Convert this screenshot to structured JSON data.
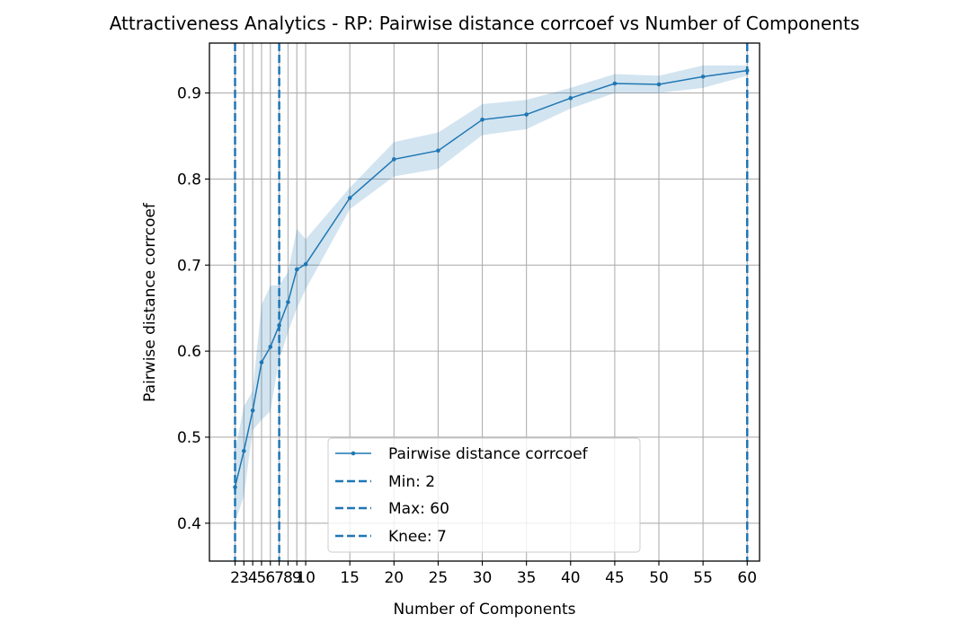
{
  "chart_data": {
    "type": "line",
    "title": "Attractiveness Analytics - RP: Pairwise distance corrcoef vs Number of Components",
    "xlabel": "Number of Components",
    "ylabel": "Pairwise distance corrcoef",
    "xlim": [
      -0.9,
      61.4
    ],
    "ylim": [
      0.356,
      0.958
    ],
    "x_ticks": [
      2,
      3,
      4,
      5,
      6,
      7,
      8,
      9,
      10,
      15,
      20,
      25,
      30,
      35,
      40,
      45,
      50,
      55,
      60
    ],
    "y_ticks": [
      0.4,
      0.5,
      0.6,
      0.7,
      0.8,
      0.9
    ],
    "y_tick_labels": [
      "0.4",
      "0.5",
      "0.6",
      "0.7",
      "0.8",
      "0.9"
    ],
    "grid": true,
    "legend_position": "lower-center",
    "series": [
      {
        "name": "Pairwise distance corrcoef",
        "color": "#1f77b4",
        "x": [
          2,
          3,
          4,
          5,
          6,
          7,
          8,
          9,
          10,
          15,
          20,
          25,
          30,
          35,
          40,
          45,
          50,
          55,
          60
        ],
        "y": [
          0.442,
          0.484,
          0.531,
          0.587,
          0.605,
          0.63,
          0.657,
          0.695,
          0.701,
          0.778,
          0.823,
          0.833,
          0.869,
          0.875,
          0.894,
          0.911,
          0.91,
          0.919,
          0.926
        ],
        "lower": [
          0.4,
          0.432,
          0.508,
          0.52,
          0.53,
          0.59,
          0.622,
          0.65,
          0.672,
          0.765,
          0.803,
          0.812,
          0.851,
          0.858,
          0.882,
          0.9,
          0.9,
          0.906,
          0.92
        ],
        "upper": [
          0.484,
          0.536,
          0.554,
          0.654,
          0.676,
          0.677,
          0.692,
          0.742,
          0.73,
          0.79,
          0.843,
          0.854,
          0.887,
          0.892,
          0.906,
          0.922,
          0.92,
          0.932,
          0.932
        ]
      }
    ],
    "vlines": [
      {
        "name": "Min: 2",
        "x": 2,
        "color": "#1f77b4",
        "style": "dashed"
      },
      {
        "name": "Max: 60",
        "x": 60,
        "color": "#1f77b4",
        "style": "dashed"
      },
      {
        "name": "Knee: 7",
        "x": 7,
        "color": "#1f77b4",
        "style": "dashed"
      }
    ]
  }
}
